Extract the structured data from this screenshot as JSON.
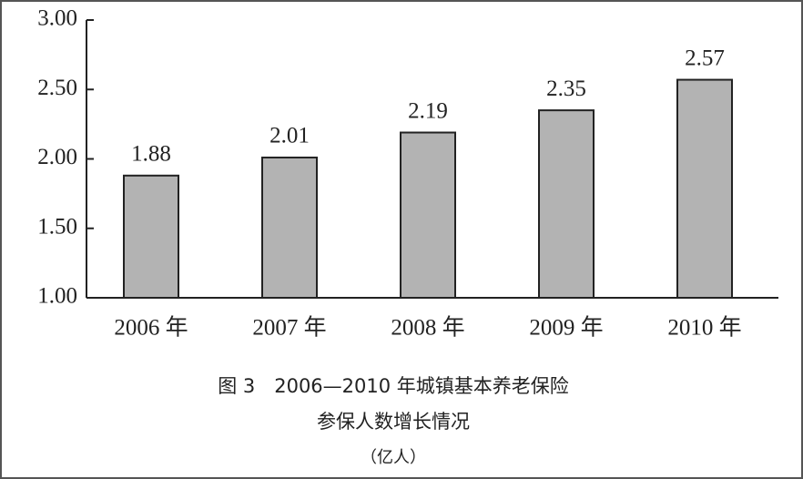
{
  "chart_data": {
    "type": "bar",
    "title": "图 3　2006—2010 年城镇基本养老保险",
    "subtitle": "参保人数增长情况",
    "unit": "（亿人）",
    "categories": [
      "2006 年",
      "2007 年",
      "2008 年",
      "2009 年",
      "2010 年"
    ],
    "values": [
      1.88,
      2.01,
      2.19,
      2.35,
      2.57
    ],
    "color": "#b3b3b3",
    "ylim": [
      1,
      3
    ],
    "yticks": [
      {
        "value": 1,
        "label": "1.00"
      },
      {
        "value": 1.5,
        "label": "1.50"
      },
      {
        "value": 2,
        "label": "2.00"
      },
      {
        "value": 2.5,
        "label": "2.50"
      },
      {
        "value": 3,
        "label": "3.00"
      }
    ],
    "grid": false
  }
}
